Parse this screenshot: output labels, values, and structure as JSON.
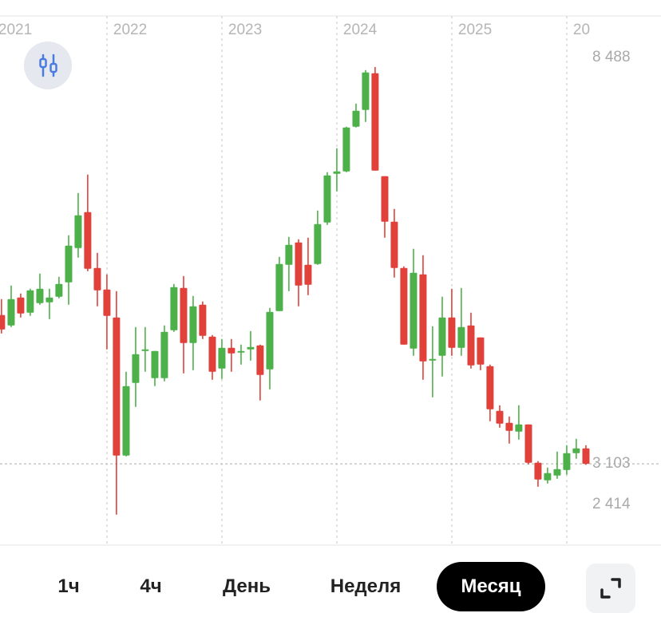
{
  "chart_data": {
    "type": "candlestick",
    "x": [
      2021.083,
      2021.167,
      2021.25,
      2021.333,
      2021.417,
      2021.5,
      2021.583,
      2021.667,
      2021.75,
      2021.833,
      2021.917,
      2022,
      2022.083,
      2022.167,
      2022.25,
      2022.333,
      2022.417,
      2022.5,
      2022.583,
      2022.667,
      2022.75,
      2022.833,
      2022.917,
      2023,
      2023.083,
      2023.167,
      2023.25,
      2023.333,
      2023.417,
      2023.5,
      2023.583,
      2023.667,
      2023.75,
      2023.833,
      2023.917,
      2024,
      2024.083,
      2024.167,
      2024.25,
      2024.333,
      2024.417,
      2024.5,
      2024.583,
      2024.667,
      2024.75,
      2024.833,
      2024.917,
      2025,
      2025.083,
      2025.167,
      2025.25,
      2025.333,
      2025.417,
      2025.5,
      2025.583,
      2025.667,
      2025.75,
      2025.833,
      2025.917,
      2026,
      2026.083,
      2026.167
    ],
    "open": [
      5122,
      4981,
      5360,
      5154,
      5284,
      5295,
      5371,
      5566,
      6031,
      6519,
      5760,
      5468,
      5089,
      3215,
      4201,
      4634,
      4266,
      4266,
      4916,
      5490,
      4742,
      5262,
      4829,
      4396,
      4677,
      4612,
      4656,
      4710,
      4385,
      5176,
      5804,
      6107,
      5804,
      5815,
      6378,
      7038,
      7071,
      7677,
      7905,
      8403,
      7006,
      6389,
      5760,
      4667,
      5674,
      4504,
      4569,
      5089,
      4677,
      4981,
      4818,
      4428,
      3822,
      3659,
      3540,
      3638,
      3118,
      2880,
      2945,
      3020,
      3248,
      3313
    ],
    "high": [
      5338,
      5522,
      5414,
      5479,
      5685,
      5479,
      5641,
      6205,
      6778,
      7028,
      5966,
      5674,
      5446,
      4353,
      4959,
      4959,
      4634,
      4981,
      5544,
      5652,
      5381,
      5306,
      4851,
      4797,
      4797,
      4721,
      4905,
      4721,
      5219,
      5912,
      6183,
      6150,
      6172,
      6540,
      7060,
      7385,
      7677,
      7991,
      8446,
      8488,
      7006,
      6562,
      5782,
      6020,
      5934,
      4970,
      5371,
      5479,
      5490,
      5154,
      4818,
      4450,
      3898,
      3746,
      3898,
      3638,
      3140,
      3053,
      3270,
      3356,
      3443,
      3356
    ],
    "low": [
      4872,
      4959,
      5089,
      5111,
      5262,
      5067,
      5349,
      5262,
      5901,
      5717,
      5241,
      4656,
      2414,
      3205,
      3876,
      4353,
      4158,
      4223,
      4894,
      4331,
      4374,
      4797,
      4244,
      4255,
      4353,
      4450,
      4504,
      3963,
      4114,
      5176,
      5446,
      5241,
      5392,
      5804,
      6345,
      6800,
      7060,
      7667,
      7742,
      7082,
      6172,
      5631,
      4721,
      4569,
      4244,
      4006,
      4288,
      4569,
      4569,
      4396,
      4374,
      3681,
      3594,
      3378,
      3432,
      3096,
      2793,
      2836,
      2901,
      2956,
      3172,
      3090
    ],
    "close": [
      4927,
      5338,
      5143,
      5457,
      5479,
      5360,
      5544,
      6064,
      6475,
      5750,
      5457,
      5111,
      3215,
      4158,
      4591,
      4656,
      4634,
      4894,
      5501,
      4742,
      5241,
      4840,
      4353,
      4677,
      4602,
      4634,
      4688,
      4309,
      5165,
      5815,
      6075,
      5522,
      5533,
      6356,
      7017,
      7071,
      7667,
      7894,
      8414,
      7082,
      6389,
      5760,
      4721,
      5695,
      4493,
      4526,
      5089,
      4677,
      4959,
      4439,
      4450,
      3844,
      3649,
      3551,
      3638,
      3118,
      2891,
      2977,
      3031,
      3248,
      3313,
      3103
    ],
    "up_color": "#4db04a",
    "down_color": "#e0413a",
    "xlim": [
      2021.07,
      2026.82
    ],
    "xticks": [
      2021,
      2022,
      2023,
      2024,
      2025,
      {
        "value": 2026,
        "label": "20"
      }
    ],
    "ylim": [
      2000,
      9180
    ],
    "yticks": [
      {
        "value": 8488,
        "label": "8 488"
      },
      {
        "value": 2414,
        "label": "2 414"
      }
    ],
    "last_price": {
      "value": 3103,
      "label": "3 103"
    },
    "grid": "x"
  },
  "timeframes": [
    "1ч",
    "4ч",
    "День",
    "Неделя",
    "Месяц"
  ],
  "active_timeframe": 4
}
